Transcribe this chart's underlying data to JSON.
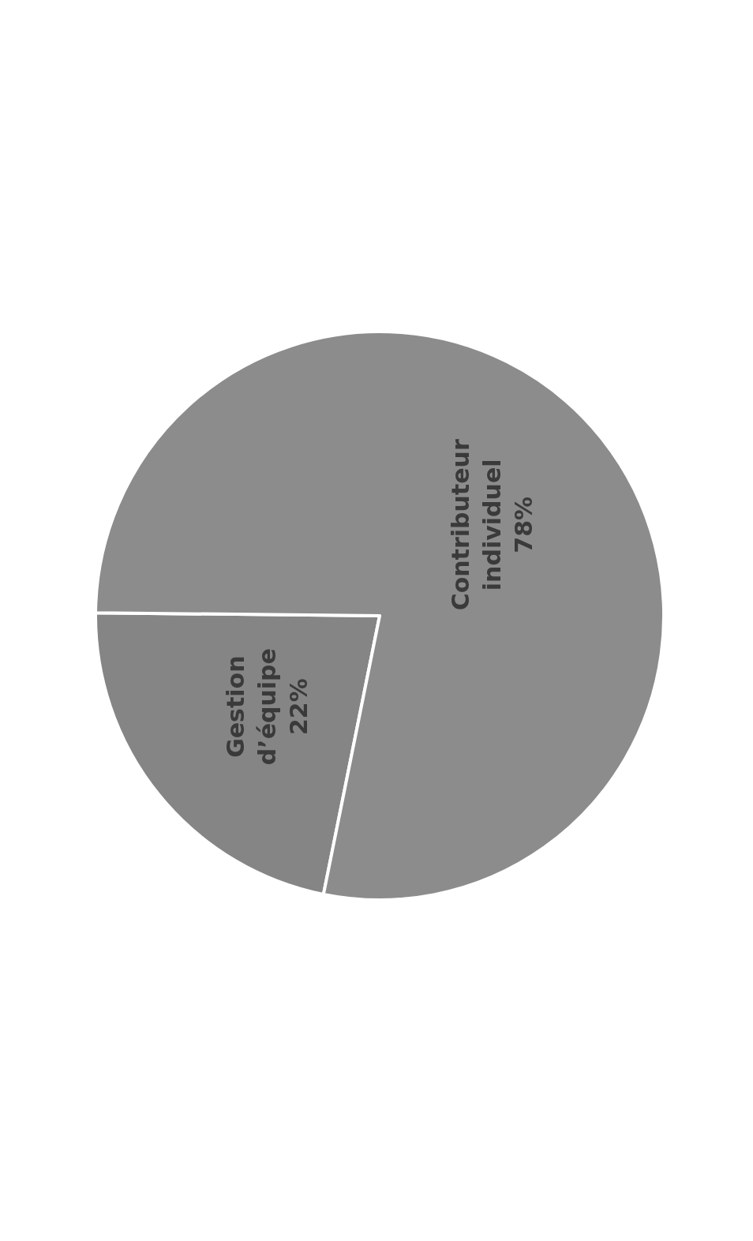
{
  "chart_data": {
    "type": "pie",
    "categories": [
      "Gestion d’équipe",
      "Contributeur individuel"
    ],
    "values": [
      22,
      78
    ],
    "colors": [
      "#858585",
      "#8c8c8c"
    ],
    "value_labels": [
      "22%",
      "78%"
    ],
    "legend": false
  }
}
